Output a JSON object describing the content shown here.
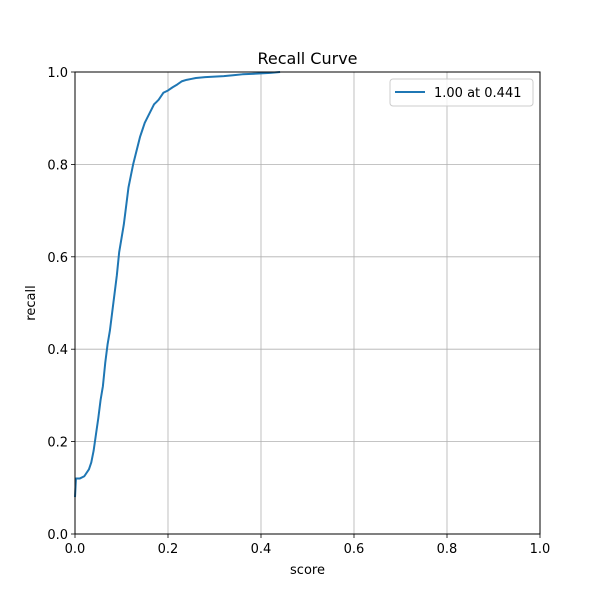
{
  "chart_data": {
    "type": "line",
    "title": "Recall Curve",
    "xlabel": "score",
    "ylabel": "recall",
    "xlim": [
      0,
      1
    ],
    "ylim": [
      0,
      1
    ],
    "grid": true,
    "legend_position": "top-right",
    "x_ticks": [
      "0.0",
      "0.2",
      "0.4",
      "0.6",
      "0.8",
      "1.0"
    ],
    "y_ticks": [
      "0.0",
      "0.2",
      "0.4",
      "0.6",
      "0.8",
      "1.0"
    ],
    "series": [
      {
        "name": "1.00 at 0.441",
        "color": "#1f77b4",
        "x": [
          0.0,
          0.002,
          0.01,
          0.02,
          0.03,
          0.035,
          0.04,
          0.045,
          0.05,
          0.055,
          0.06,
          0.065,
          0.07,
          0.075,
          0.08,
          0.085,
          0.09,
          0.095,
          0.1,
          0.105,
          0.11,
          0.115,
          0.12,
          0.125,
          0.13,
          0.135,
          0.14,
          0.145,
          0.15,
          0.155,
          0.16,
          0.165,
          0.17,
          0.175,
          0.18,
          0.19,
          0.2,
          0.21,
          0.22,
          0.23,
          0.24,
          0.25,
          0.26,
          0.28,
          0.3,
          0.32,
          0.34,
          0.36,
          0.38,
          0.4,
          0.42,
          0.441
        ],
        "y": [
          0.08,
          0.12,
          0.12,
          0.125,
          0.14,
          0.155,
          0.18,
          0.215,
          0.25,
          0.29,
          0.32,
          0.37,
          0.41,
          0.44,
          0.48,
          0.52,
          0.56,
          0.61,
          0.64,
          0.67,
          0.71,
          0.75,
          0.775,
          0.8,
          0.82,
          0.84,
          0.86,
          0.875,
          0.89,
          0.9,
          0.91,
          0.92,
          0.93,
          0.935,
          0.94,
          0.955,
          0.96,
          0.967,
          0.973,
          0.98,
          0.983,
          0.985,
          0.987,
          0.989,
          0.99,
          0.991,
          0.993,
          0.995,
          0.996,
          0.997,
          0.998,
          1.0
        ]
      }
    ]
  }
}
